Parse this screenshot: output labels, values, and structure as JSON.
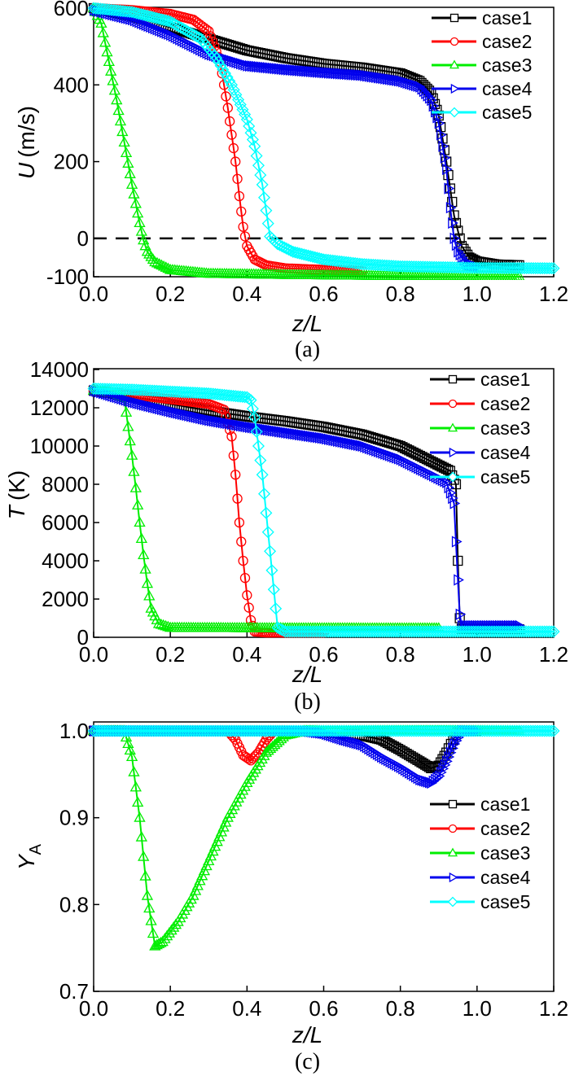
{
  "chart_data": [
    {
      "type": "line",
      "panel_label": "(a)",
      "xlabel": "z/L",
      "ylabel_main": "U",
      "ylabel_unit": "(m/s)",
      "xlim": [
        0.0,
        1.2
      ],
      "ylim": [
        -100,
        600
      ],
      "xticks": [
        0.0,
        0.2,
        0.4,
        0.6,
        0.8,
        1.0,
        1.2
      ],
      "xtick_labels": [
        "0.0",
        "0.2",
        "0.4",
        "0.6",
        "0.8",
        "1.0",
        "1.2"
      ],
      "yticks": [
        -100,
        0,
        200,
        400,
        600
      ],
      "ytick_labels": [
        "-100",
        "0",
        "200",
        "400",
        "600"
      ],
      "reference_line": {
        "y": 0,
        "style": "dashed"
      },
      "legend_position": "top-right",
      "series": [
        {
          "name": "case1",
          "color": "#000000",
          "marker": "square",
          "x": [
            0,
            0.1,
            0.2,
            0.3,
            0.4,
            0.5,
            0.6,
            0.7,
            0.8,
            0.85,
            0.88,
            0.9,
            0.92,
            0.94,
            0.96,
            0.98,
            1.0,
            1.05,
            1.11
          ],
          "y": [
            600,
            580,
            550,
            520,
            490,
            470,
            455,
            445,
            430,
            410,
            380,
            320,
            200,
            60,
            -20,
            -50,
            -60,
            -68,
            -70
          ]
        },
        {
          "name": "case2",
          "color": "#ff0000",
          "marker": "circle",
          "x": [
            0,
            0.1,
            0.2,
            0.26,
            0.3,
            0.33,
            0.35,
            0.37,
            0.38,
            0.39,
            0.4,
            0.42,
            0.45,
            0.5,
            0.6,
            0.7
          ],
          "y": [
            600,
            595,
            585,
            570,
            540,
            460,
            340,
            200,
            110,
            30,
            -20,
            -55,
            -70,
            -78,
            -82,
            -85
          ]
        },
        {
          "name": "case3",
          "color": "#00ee00",
          "marker": "triangle",
          "x": [
            0,
            0.02,
            0.04,
            0.06,
            0.08,
            0.1,
            0.12,
            0.13,
            0.14,
            0.16,
            0.2,
            0.3,
            0.5,
            0.8,
            1.11
          ],
          "y": [
            600,
            560,
            460,
            360,
            250,
            140,
            40,
            -5,
            -35,
            -62,
            -82,
            -92,
            -95,
            -98,
            -100
          ]
        },
        {
          "name": "case4",
          "color": "#0000ee",
          "marker": "triangle-right",
          "x": [
            0,
            0.1,
            0.2,
            0.3,
            0.4,
            0.5,
            0.6,
            0.7,
            0.8,
            0.85,
            0.88,
            0.9,
            0.92,
            0.93,
            0.94,
            0.95,
            0.97,
            1.0
          ],
          "y": [
            595,
            570,
            530,
            480,
            450,
            440,
            432,
            425,
            410,
            395,
            360,
            300,
            180,
            80,
            0,
            -35,
            -65,
            -75
          ]
        },
        {
          "name": "case5",
          "color": "#00ffff",
          "marker": "diamond",
          "x": [
            0,
            0.1,
            0.2,
            0.28,
            0.32,
            0.36,
            0.4,
            0.42,
            0.44,
            0.46,
            0.48,
            0.52,
            0.6,
            0.7,
            0.8,
            1.0,
            1.2
          ],
          "y": [
            600,
            590,
            565,
            520,
            470,
            400,
            310,
            240,
            140,
            5,
            -15,
            -35,
            -55,
            -67,
            -73,
            -77,
            -78
          ]
        }
      ]
    },
    {
      "type": "line",
      "panel_label": "(b)",
      "xlabel": "z/L",
      "ylabel_main": "T",
      "ylabel_unit": "(K)",
      "xlim": [
        0.0,
        1.2
      ],
      "ylim": [
        0,
        14000
      ],
      "xticks": [
        0.0,
        0.2,
        0.4,
        0.6,
        0.8,
        1.0,
        1.2
      ],
      "xtick_labels": [
        "0.0",
        "0.2",
        "0.4",
        "0.6",
        "0.8",
        "1.0",
        "1.2"
      ],
      "yticks": [
        0,
        2000,
        4000,
        6000,
        8000,
        10000,
        12000,
        14000
      ],
      "ytick_labels": [
        "0",
        "2000",
        "4000",
        "6000",
        "8000",
        "10000",
        "12000",
        "14000"
      ],
      "legend_position": "top-right",
      "series": [
        {
          "name": "case1",
          "color": "#000000",
          "marker": "square",
          "x": [
            0,
            0.1,
            0.2,
            0.3,
            0.4,
            0.5,
            0.6,
            0.7,
            0.8,
            0.88,
            0.93,
            0.945,
            0.95,
            0.955,
            0.96,
            1.0,
            1.11
          ],
          "y": [
            12900,
            12600,
            12200,
            11850,
            11550,
            11300,
            11000,
            10600,
            10000,
            9200,
            8700,
            8000,
            4000,
            1000,
            450,
            420,
            420
          ]
        },
        {
          "name": "case2",
          "color": "#ff0000",
          "marker": "circle",
          "x": [
            0,
            0.1,
            0.2,
            0.3,
            0.34,
            0.36,
            0.37,
            0.38,
            0.39,
            0.4,
            0.41,
            0.42,
            0.45,
            0.6
          ],
          "y": [
            12900,
            12700,
            12450,
            12200,
            11900,
            10500,
            8500,
            6000,
            4000,
            2200,
            900,
            300,
            250,
            250
          ]
        },
        {
          "name": "case3",
          "color": "#00ee00",
          "marker": "triangle",
          "x": [
            0,
            0.05,
            0.08,
            0.09,
            0.1,
            0.11,
            0.12,
            0.13,
            0.14,
            0.15,
            0.17,
            0.2,
            0.5,
            0.9
          ],
          "y": [
            12900,
            12800,
            12500,
            11000,
            9500,
            7800,
            6000,
            4300,
            2800,
            1500,
            700,
            500,
            480,
            470
          ]
        },
        {
          "name": "case4",
          "color": "#0000ee",
          "marker": "triangle-right",
          "x": [
            0,
            0.1,
            0.2,
            0.3,
            0.4,
            0.5,
            0.6,
            0.7,
            0.8,
            0.88,
            0.92,
            0.94,
            0.945,
            0.95,
            0.955,
            0.96,
            1.0,
            1.11
          ],
          "y": [
            12900,
            12300,
            11800,
            11350,
            11000,
            10700,
            10400,
            10000,
            9300,
            8500,
            8100,
            7000,
            5000,
            3000,
            1200,
            600,
            600,
            600
          ]
        },
        {
          "name": "case5",
          "color": "#00ffff",
          "marker": "diamond",
          "x": [
            0,
            0.1,
            0.2,
            0.3,
            0.4,
            0.41,
            0.42,
            0.43,
            0.44,
            0.45,
            0.46,
            0.47,
            0.48,
            0.5,
            0.8,
            1.2
          ],
          "y": [
            13000,
            12950,
            12850,
            12750,
            12550,
            12400,
            11500,
            10000,
            8500,
            6500,
            4500,
            2500,
            500,
            300,
            300,
            300
          ]
        }
      ]
    },
    {
      "type": "line",
      "panel_label": "(c)",
      "xlabel": "z/L",
      "ylabel_main": "Y",
      "ylabel_sub": "A",
      "xlim": [
        0.0,
        1.2
      ],
      "ylim": [
        0.7,
        1.0
      ],
      "xticks": [
        0.0,
        0.2,
        0.4,
        0.6,
        0.8,
        1.0,
        1.2
      ],
      "xtick_labels": [
        "0.0",
        "0.2",
        "0.4",
        "0.6",
        "0.8",
        "1.0",
        "1.2"
      ],
      "yticks": [
        0.7,
        0.8,
        0.9,
        1.0
      ],
      "ytick_labels": [
        "0.7",
        "0.8",
        "0.9",
        "1.0"
      ],
      "legend_position": "center-right",
      "series": [
        {
          "name": "case1",
          "color": "#000000",
          "marker": "square",
          "x": [
            0,
            0.5,
            0.6,
            0.7,
            0.75,
            0.8,
            0.85,
            0.88,
            0.9,
            0.92,
            0.95,
            1.0
          ],
          "y": [
            1.0,
            1.0,
            0.999,
            0.995,
            0.99,
            0.978,
            0.965,
            0.957,
            0.96,
            0.975,
            1.0,
            1.0
          ]
        },
        {
          "name": "case2",
          "color": "#ff0000",
          "marker": "circle",
          "x": [
            0,
            0.35,
            0.37,
            0.39,
            0.41,
            0.43,
            0.45,
            0.47,
            0.5
          ],
          "y": [
            1.0,
            1.0,
            0.99,
            0.972,
            0.966,
            0.975,
            0.99,
            1.0,
            1.0
          ]
        },
        {
          "name": "case3",
          "color": "#00ee00",
          "marker": "triangle",
          "x": [
            0,
            0.08,
            0.1,
            0.12,
            0.14,
            0.16,
            0.18,
            0.22,
            0.26,
            0.3,
            0.35,
            0.4,
            0.45,
            0.5,
            0.55,
            0.6,
            1.11
          ],
          "y": [
            1.0,
            1.0,
            0.97,
            0.9,
            0.81,
            0.752,
            0.757,
            0.78,
            0.81,
            0.85,
            0.9,
            0.94,
            0.975,
            0.995,
            1.0,
            1.0,
            1.0
          ]
        },
        {
          "name": "case4",
          "color": "#0000ee",
          "marker": "triangle-right",
          "x": [
            0,
            0.55,
            0.6,
            0.65,
            0.7,
            0.75,
            0.8,
            0.85,
            0.88,
            0.9,
            0.92,
            0.94,
            0.96,
            1.0
          ],
          "y": [
            1.0,
            1.0,
            0.997,
            0.99,
            0.984,
            0.97,
            0.958,
            0.944,
            0.94,
            0.948,
            0.965,
            0.985,
            1.0,
            1.0
          ]
        },
        {
          "name": "case5",
          "color": "#00ffff",
          "marker": "diamond",
          "x": [
            0,
            0.3,
            0.6,
            0.9,
            1.2
          ],
          "y": [
            1.0,
            1.0,
            1.0,
            1.0,
            1.0
          ]
        }
      ]
    }
  ]
}
